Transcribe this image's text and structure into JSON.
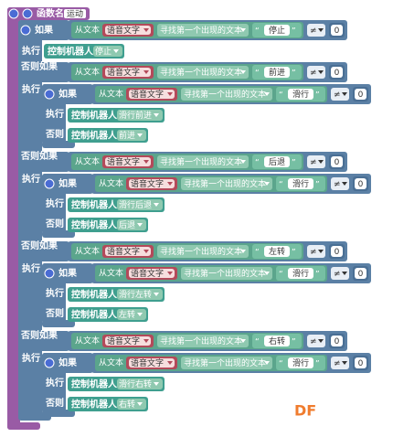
{
  "function": {
    "keyword": "函数名",
    "name": "运动"
  },
  "labels": {
    "if": "如果",
    "elseif": "否则如果",
    "do": "执行",
    "else": "否则",
    "from_text": "从文本",
    "variable": "语音文字",
    "find": "寻找第一个出现的文本",
    "quote_open": "“",
    "quote_close": "”",
    "operator": "≠",
    "number": 0,
    "robot": "控制机器人"
  },
  "branches": [
    {
      "match": "停止",
      "action": "停止"
    },
    {
      "match": "前进",
      "nested": {
        "match": "滑行",
        "action": "滑行前进",
        "else_action": "前进"
      }
    },
    {
      "match": "后退",
      "nested": {
        "match": "滑行",
        "action": "滑行后退",
        "else_action": "后退"
      }
    },
    {
      "match": "左转",
      "nested": {
        "match": "滑行",
        "action": "滑行左转",
        "else_action": "左转"
      }
    },
    {
      "match": "右转",
      "nested": {
        "match": "滑行",
        "action": "滑行右转",
        "else_action": "右转"
      }
    }
  ],
  "watermark": "DF"
}
